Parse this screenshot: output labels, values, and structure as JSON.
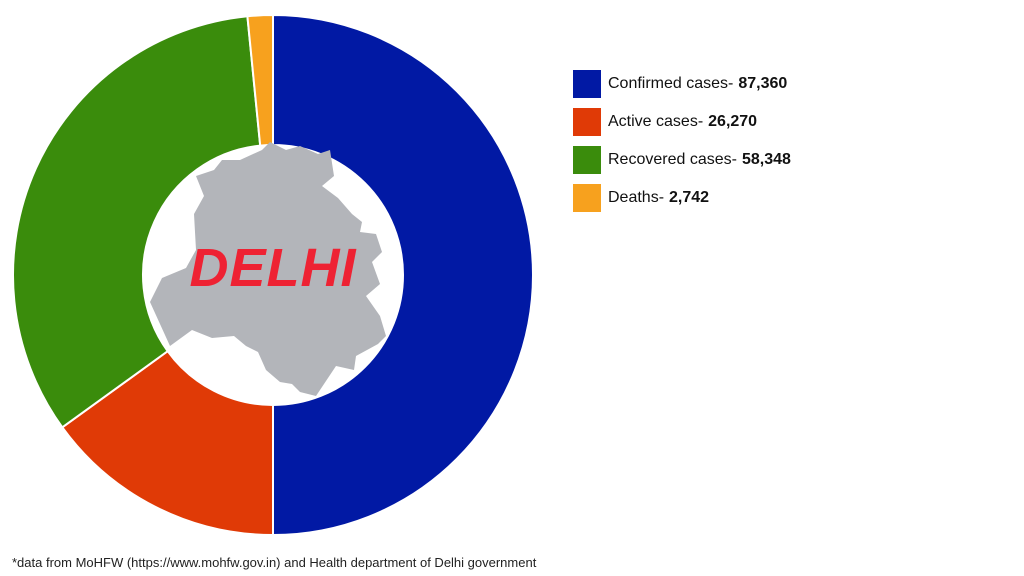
{
  "chart_data": {
    "type": "pie",
    "center_label": "DELHI",
    "slices": [
      {
        "label": "Confirmed cases-",
        "value": 87360,
        "value_text": "87,360",
        "color": "#0119a4"
      },
      {
        "label": "Active cases-",
        "value": 26270,
        "value_text": "26,270",
        "color": "#e03a06"
      },
      {
        "label": "Recovered cases-",
        "value": 58348,
        "value_text": "58,348",
        "color": "#3a8c0c"
      },
      {
        "label": "Deaths-",
        "value": 2742,
        "value_text": "2,742",
        "color": "#f7a11e"
      }
    ],
    "legend_position": "right",
    "map_color": "#b3b5ba"
  },
  "footnote": "*data from MoHFW (https://www.mohfw.gov.in) and Health department of Delhi government"
}
